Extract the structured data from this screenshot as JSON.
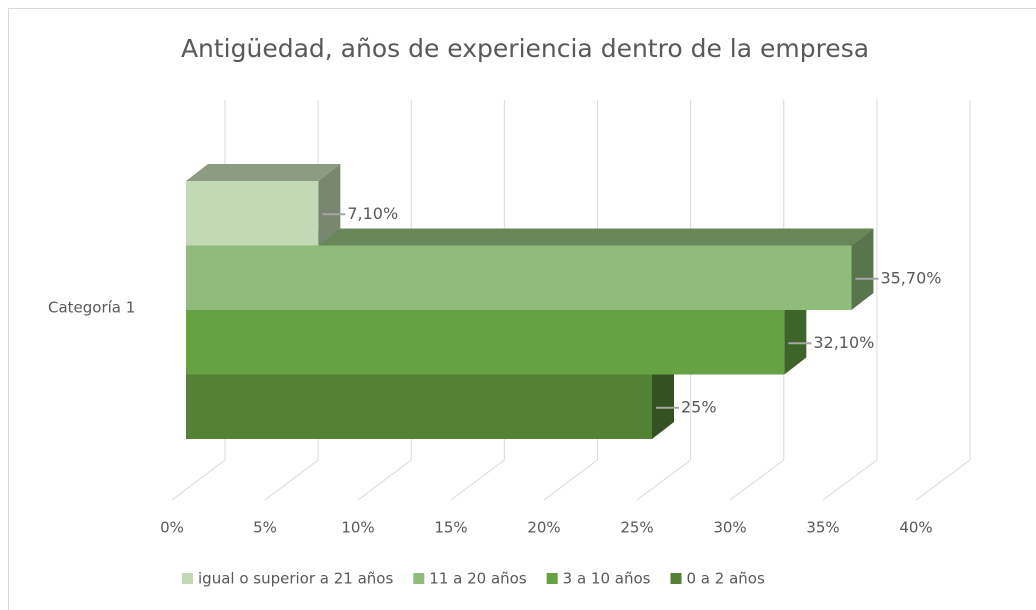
{
  "chart_data": {
    "type": "bar",
    "orientation": "horizontal",
    "title": "Antigüedad, años de experiencia dentro de la empresa",
    "categories": [
      "Categoría 1"
    ],
    "series": [
      {
        "name": "igual o superior a 21 años",
        "color": "#c3d9b6",
        "values": [
          7.1
        ],
        "value_labels": [
          "7,10%"
        ]
      },
      {
        "name": "11 a 20 años",
        "color": "#8fbc7b",
        "values": [
          35.7
        ],
        "value_labels": [
          "35,70%"
        ]
      },
      {
        "name": "3 a 10 años",
        "color": "#66a143",
        "values": [
          32.1
        ],
        "value_labels": [
          "32,10%"
        ]
      },
      {
        "name": "0 a 2 años",
        "color": "#548235",
        "values": [
          25
        ],
        "value_labels": [
          "25%"
        ]
      }
    ],
    "xlim": [
      0,
      40
    ],
    "xticks": [
      {
        "value": 0,
        "label": "0%"
      },
      {
        "value": 5,
        "label": "5%"
      },
      {
        "value": 10,
        "label": "10%"
      },
      {
        "value": 15,
        "label": "15%"
      },
      {
        "value": 20,
        "label": "20%"
      },
      {
        "value": 25,
        "label": "25%"
      },
      {
        "value": 30,
        "label": "30%"
      },
      {
        "value": 35,
        "label": "35%"
      },
      {
        "value": 40,
        "label": "40%"
      }
    ],
    "grid": true,
    "legend": "bottom"
  }
}
